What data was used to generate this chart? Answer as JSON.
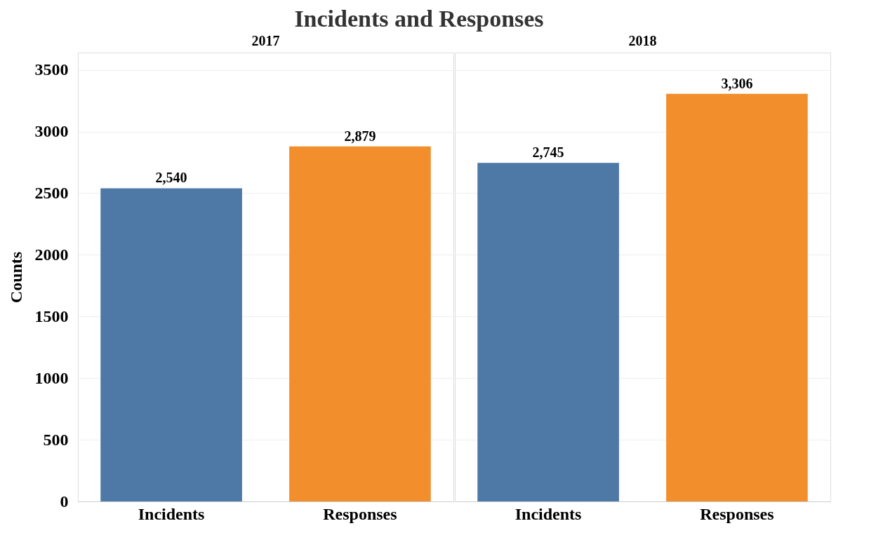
{
  "chart_data": [
    {
      "type": "bar",
      "title": "Incidents and Responses",
      "subtitle": "2017",
      "ylabel": "Counts",
      "categories": [
        "Incidents",
        "Responses"
      ],
      "values": [
        2540,
        2879
      ],
      "value_labels": [
        "2,540",
        "2,879"
      ],
      "colors": [
        "#4e79a7",
        "#f28e2b"
      ],
      "ylim": [
        0,
        3640
      ],
      "yticks": [
        0,
        500,
        1000,
        1500,
        2000,
        2500,
        3000,
        3500
      ],
      "grid": "y"
    },
    {
      "type": "bar",
      "subtitle": "2018",
      "categories": [
        "Incidents",
        "Responses"
      ],
      "values": [
        2745,
        3306
      ],
      "value_labels": [
        "2,745",
        "3,306"
      ],
      "colors": [
        "#4e79a7",
        "#f28e2b"
      ],
      "ylim": [
        0,
        3640
      ],
      "yticks": [
        0,
        500,
        1000,
        1500,
        2000,
        2500,
        3000,
        3500
      ],
      "grid": "y",
      "tick_labels": "x"
    }
  ]
}
